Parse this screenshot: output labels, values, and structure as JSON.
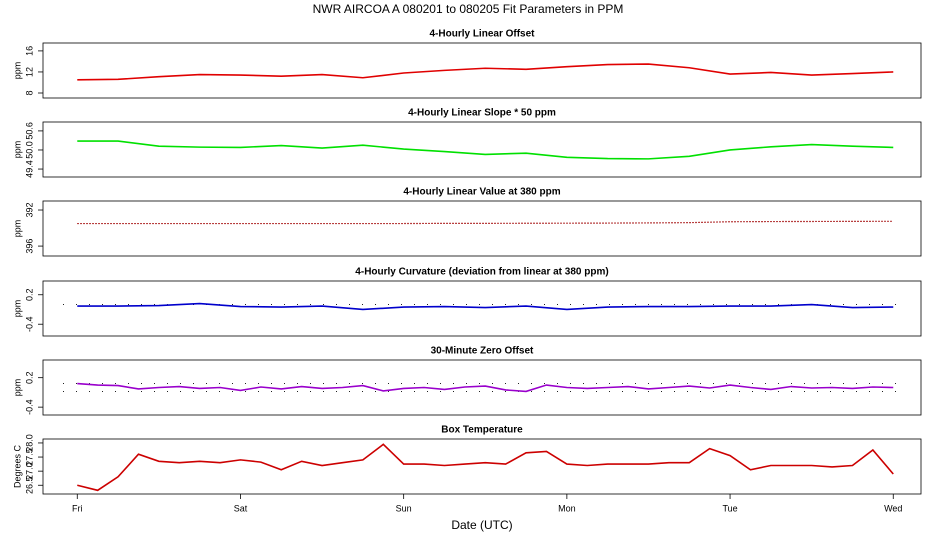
{
  "title": "NWR   AIRCOA A   080201 to 080205   Fit Parameters in PPM",
  "chart_data": [
    {
      "type": "line",
      "title": "4-Hourly Linear Offset",
      "ylabel": "ppm",
      "color": "#e00000",
      "x": [
        0,
        0.25,
        0.5,
        0.75,
        1,
        1.25,
        1.5,
        1.75,
        2,
        2.25,
        2.5,
        2.75,
        3,
        3.25,
        3.5,
        3.75,
        4,
        4.25,
        4.5,
        4.75,
        5
      ],
      "values": [
        10.5,
        10.6,
        11.1,
        11.5,
        11.4,
        11.2,
        11.5,
        10.9,
        11.8,
        12.3,
        12.7,
        12.5,
        13.0,
        13.4,
        13.5,
        12.8,
        11.6,
        11.9,
        11.4,
        11.7,
        12.0
      ],
      "xlim": [
        -0.21,
        5.17
      ],
      "ylim": [
        7.05,
        17.5
      ],
      "yticks": [
        8,
        12,
        16
      ]
    },
    {
      "type": "line",
      "title": "4-Hourly Linear Slope * 50 ppm",
      "ylabel": "ppm",
      "color": "#00e000",
      "x": [
        0,
        0.25,
        0.5,
        0.75,
        1,
        1.25,
        1.5,
        1.75,
        2,
        2.25,
        2.5,
        2.75,
        3,
        3.25,
        3.5,
        3.75,
        4,
        4.25,
        4.5,
        4.75,
        5
      ],
      "values": [
        50.28,
        50.28,
        50.12,
        50.09,
        50.08,
        50.14,
        50.06,
        50.15,
        50.03,
        49.95,
        49.86,
        49.9,
        49.77,
        49.73,
        49.72,
        49.8,
        50.0,
        50.1,
        50.17,
        50.12,
        50.08
      ],
      "xlim": [
        -0.21,
        5.17
      ],
      "ylim": [
        49.15,
        50.88
      ],
      "yticks": [
        49.4,
        {
          "value": 50,
          "label": "50.0"
        },
        50.6
      ]
    },
    {
      "type": "line",
      "title": "4-Hourly Linear Value at 380 ppm",
      "ylabel": "ppm",
      "color": "#a00000",
      "dotted": true,
      "x": [
        0,
        0.25,
        0.5,
        0.75,
        1,
        1.25,
        1.5,
        1.75,
        2,
        2.25,
        2.5,
        2.75,
        3,
        3.25,
        3.5,
        3.75,
        4,
        4.25,
        4.5,
        4.75,
        5
      ],
      "values": [
        393.5,
        393.5,
        393.5,
        393.5,
        393.5,
        393.5,
        393.5,
        393.5,
        393.5,
        393.48,
        393.48,
        393.47,
        393.46,
        393.45,
        393.43,
        393.4,
        393.3,
        393.28,
        393.27,
        393.26,
        393.25
      ],
      "xlim": [
        -0.21,
        5.17
      ],
      "ylim": [
        397.1,
        391.0
      ],
      "yticks": [
        392,
        396
      ]
    },
    {
      "type": "line",
      "title": "4-Hourly Curvature (deviation from linear at 380 ppm)",
      "ylabel": "ppm",
      "color": "#0000cc",
      "x": [
        0,
        0.25,
        0.5,
        0.75,
        1,
        1.25,
        1.5,
        1.75,
        2,
        2.25,
        2.5,
        2.75,
        3,
        3.25,
        3.5,
        3.75,
        4,
        4.25,
        4.5,
        4.75,
        5
      ],
      "values": [
        -0.03,
        -0.03,
        -0.02,
        0.02,
        -0.04,
        -0.05,
        -0.03,
        -0.1,
        -0.05,
        -0.04,
        -0.06,
        -0.03,
        -0.1,
        -0.05,
        -0.04,
        -0.04,
        -0.03,
        -0.03,
        0.0,
        -0.06,
        -0.05
      ],
      "hlines": [
        0
      ],
      "xlim": [
        -0.21,
        5.17
      ],
      "ylim": [
        -0.64,
        0.48
      ],
      "yticks": [
        -0.4,
        0.2
      ]
    },
    {
      "type": "line",
      "title": "30-Minute Zero Offset",
      "ylabel": "ppm",
      "color": "#9900cc",
      "x": [
        0,
        0.125,
        0.25,
        0.375,
        0.5,
        0.625,
        0.75,
        0.875,
        1,
        1.125,
        1.25,
        1.375,
        1.5,
        1.625,
        1.75,
        1.875,
        2,
        2.125,
        2.25,
        2.375,
        2.5,
        2.625,
        2.75,
        2.875,
        3,
        3.125,
        3.25,
        3.375,
        3.5,
        3.625,
        3.75,
        3.875,
        4,
        4.125,
        4.25,
        4.375,
        4.5,
        4.625,
        4.75,
        4.875,
        5
      ],
      "values": [
        0.08,
        0.05,
        0.04,
        -0.03,
        0.0,
        0.02,
        -0.02,
        0.0,
        -0.06,
        0.01,
        -0.03,
        0.02,
        -0.02,
        0.0,
        0.04,
        -0.07,
        -0.02,
        0.0,
        -0.04,
        0.01,
        0.03,
        -0.05,
        -0.08,
        0.05,
        0.0,
        -0.02,
        0.0,
        0.02,
        -0.03,
        0.0,
        0.03,
        -0.01,
        0.05,
        0.0,
        -0.04,
        0.02,
        -0.01,
        0.0,
        -0.02,
        0.01,
        0.0
      ],
      "hlines": [
        0.08,
        -0.08
      ],
      "xlim": [
        -0.21,
        5.17
      ],
      "ylim": [
        -0.56,
        0.56
      ],
      "yticks": [
        -0.4,
        0.2
      ]
    },
    {
      "type": "line",
      "title": "Box Temperature",
      "ylabel": "Degrees C",
      "xlabel": "Date (UTC)",
      "color": "#cc0000",
      "x": [
        0,
        0.125,
        0.25,
        0.375,
        0.5,
        0.625,
        0.75,
        0.875,
        1,
        1.125,
        1.25,
        1.375,
        1.5,
        1.625,
        1.75,
        1.875,
        2,
        2.125,
        2.25,
        2.375,
        2.5,
        2.625,
        2.75,
        2.875,
        3,
        3.125,
        3.25,
        3.375,
        3.5,
        3.625,
        3.75,
        3.875,
        4,
        4.125,
        4.25,
        4.375,
        4.5,
        4.625,
        4.75,
        4.875,
        5
      ],
      "values": [
        26.5,
        26.32,
        26.8,
        27.6,
        27.35,
        27.3,
        27.35,
        27.3,
        27.4,
        27.32,
        27.05,
        27.35,
        27.2,
        27.3,
        27.4,
        27.95,
        27.25,
        27.25,
        27.2,
        27.25,
        27.3,
        27.25,
        27.65,
        27.7,
        27.25,
        27.2,
        27.25,
        27.25,
        27.25,
        27.3,
        27.3,
        27.8,
        27.55,
        27.05,
        27.2,
        27.2,
        27.2,
        27.15,
        27.2,
        27.75,
        26.9
      ],
      "xlim": [
        -0.21,
        5.17
      ],
      "ylim": [
        26.19,
        28.14
      ],
      "yticks": [
        26.5,
        {
          "value": 27,
          "label": "27.0"
        },
        {
          "value": 27.5,
          "label": "27.5"
        },
        {
          "value": 28,
          "label": "28.0"
        }
      ],
      "xticks": [
        {
          "value": 0,
          "label": "Fri"
        },
        {
          "value": 1,
          "label": "Sat"
        },
        {
          "value": 2,
          "label": "Sun"
        },
        {
          "value": 3,
          "label": "Mon"
        },
        {
          "value": 4,
          "label": "Tue"
        },
        {
          "value": 5,
          "label": "Wed"
        }
      ]
    }
  ]
}
